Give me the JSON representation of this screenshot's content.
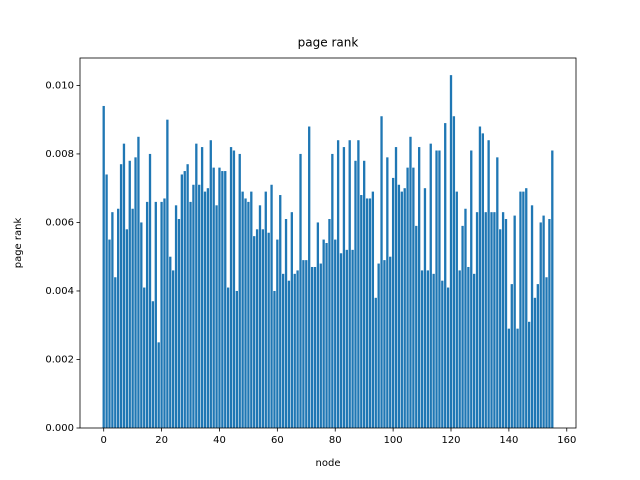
{
  "chart_data": {
    "type": "bar",
    "title": "page rank",
    "xlabel": "node",
    "ylabel": "page rank",
    "color": "#1f77b4",
    "x": [
      0,
      1,
      2,
      3,
      4,
      5,
      6,
      7,
      8,
      9,
      10,
      11,
      12,
      13,
      14,
      15,
      16,
      17,
      18,
      19,
      20,
      21,
      22,
      23,
      24,
      25,
      26,
      27,
      28,
      29,
      30,
      31,
      32,
      33,
      34,
      35,
      36,
      37,
      38,
      39,
      40,
      41,
      42,
      43,
      44,
      45,
      46,
      47,
      48,
      49,
      50,
      51,
      52,
      53,
      54,
      55,
      56,
      57,
      58,
      59,
      60,
      61,
      62,
      63,
      64,
      65,
      66,
      67,
      68,
      69,
      70,
      71,
      72,
      73,
      74,
      75,
      76,
      77,
      78,
      79,
      80,
      81,
      82,
      83,
      84,
      85,
      86,
      87,
      88,
      89,
      90,
      91,
      92,
      93,
      94,
      95,
      96,
      97,
      98,
      99,
      100,
      101,
      102,
      103,
      104,
      105,
      106,
      107,
      108,
      109,
      110,
      111,
      112,
      113,
      114,
      115,
      116,
      117,
      118,
      119,
      120,
      121,
      122,
      123,
      124,
      125,
      126,
      127,
      128,
      129,
      130,
      131,
      132,
      133,
      134,
      135,
      136,
      137,
      138,
      139,
      140,
      141,
      142,
      143,
      144,
      145,
      146,
      147,
      148,
      149,
      150,
      151,
      152,
      153,
      154,
      155
    ],
    "values": [
      0.0094,
      0.0074,
      0.0055,
      0.0063,
      0.0044,
      0.0064,
      0.0077,
      0.0083,
      0.0058,
      0.0078,
      0.0064,
      0.0079,
      0.0085,
      0.006,
      0.0041,
      0.0066,
      0.008,
      0.0037,
      0.0066,
      0.0025,
      0.0066,
      0.0067,
      0.009,
      0.005,
      0.0046,
      0.0065,
      0.0061,
      0.0074,
      0.0075,
      0.0077,
      0.0066,
      0.0071,
      0.0083,
      0.0071,
      0.0082,
      0.0069,
      0.007,
      0.0084,
      0.0076,
      0.0065,
      0.0076,
      0.0075,
      0.0075,
      0.0041,
      0.0082,
      0.0081,
      0.004,
      0.008,
      0.0069,
      0.0067,
      0.0066,
      0.0069,
      0.0056,
      0.0058,
      0.0065,
      0.0058,
      0.0069,
      0.0057,
      0.0071,
      0.004,
      0.0055,
      0.0068,
      0.0045,
      0.0061,
      0.0043,
      0.0063,
      0.0045,
      0.0046,
      0.008,
      0.0049,
      0.0049,
      0.0088,
      0.0047,
      0.0047,
      0.006,
      0.0048,
      0.0055,
      0.0054,
      0.0061,
      0.008,
      0.0055,
      0.0084,
      0.0051,
      0.0082,
      0.0052,
      0.0084,
      0.0052,
      0.0078,
      0.0084,
      0.0068,
      0.0078,
      0.0067,
      0.0067,
      0.0069,
      0.0038,
      0.0048,
      0.0091,
      0.0049,
      0.0079,
      0.005,
      0.0073,
      0.0082,
      0.0071,
      0.0069,
      0.007,
      0.0076,
      0.0085,
      0.0076,
      0.0059,
      0.0082,
      0.0046,
      0.007,
      0.0046,
      0.0083,
      0.0045,
      0.0081,
      0.0081,
      0.0043,
      0.0089,
      0.0041,
      0.0103,
      0.0091,
      0.0069,
      0.0046,
      0.0059,
      0.0064,
      0.0047,
      0.0081,
      0.0045,
      0.0063,
      0.0088,
      0.0086,
      0.0063,
      0.0084,
      0.0063,
      0.0063,
      0.0079,
      0.0058,
      0.0063,
      0.0061,
      0.0029,
      0.0042,
      0.0062,
      0.0029,
      0.0069,
      0.0069,
      0.007,
      0.0031,
      0.0065,
      0.0038,
      0.0042,
      0.006,
      0.0062,
      0.0044,
      0.0061,
      0.0081
    ],
    "xlim": [
      -8.19,
      163.19
    ],
    "xticks": [
      0,
      20,
      40,
      60,
      80,
      100,
      120,
      140,
      160
    ],
    "ylim": [
      0,
      0.0108
    ],
    "yticks": [
      {
        "value": 0,
        "label": "0.000"
      },
      {
        "value": 0.002,
        "label": "0.002"
      },
      {
        "value": 0.004,
        "label": "0.004"
      },
      {
        "value": 0.006,
        "label": "0.006"
      },
      {
        "value": 0.008,
        "label": "0.008"
      },
      {
        "value": 0.01,
        "label": "0.010"
      }
    ]
  }
}
